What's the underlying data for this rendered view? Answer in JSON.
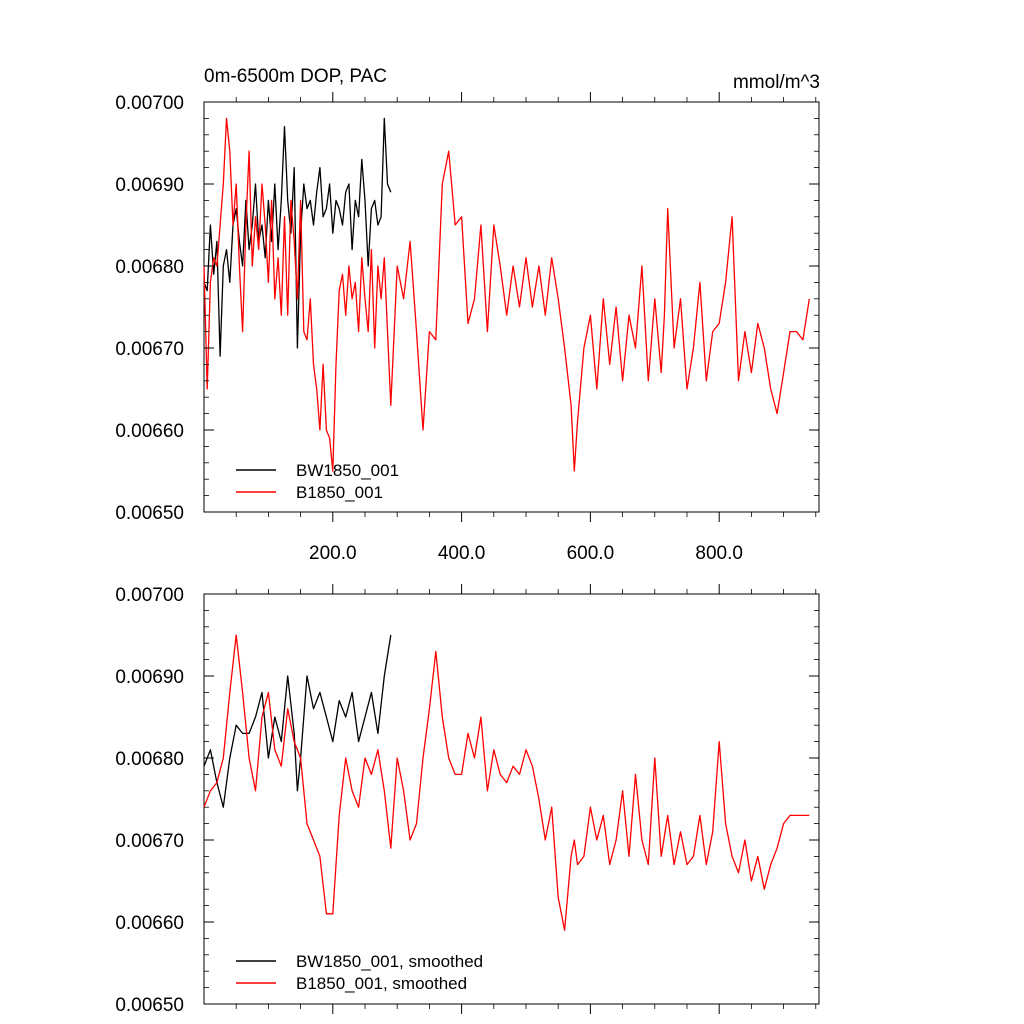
{
  "chart_data": [
    {
      "type": "line",
      "title": "0m-6500m DOP, PAC",
      "units": "mmol/m^3",
      "xlabel": "",
      "ylabel": "",
      "xlim": [
        0,
        955
      ],
      "ylim": [
        0.0065,
        0.007
      ],
      "x_tick_values": [
        200,
        400,
        600,
        800
      ],
      "x_tick_labels": [
        "200.0",
        "400.0",
        "600.0",
        "800.0"
      ],
      "y_tick_values": [
        0.0065,
        0.0066,
        0.0067,
        0.0068,
        0.0069,
        0.007
      ],
      "y_tick_labels": [
        "0.00650",
        "0.00660",
        "0.00670",
        "0.00680",
        "0.00690",
        "0.00700"
      ],
      "legend_position": "bottom-left",
      "series": [
        {
          "name": "BW1850_001",
          "color": "#000000",
          "x": [
            0,
            5,
            10,
            15,
            20,
            25,
            30,
            35,
            40,
            45,
            50,
            55,
            60,
            65,
            70,
            75,
            80,
            85,
            90,
            95,
            100,
            105,
            110,
            115,
            120,
            125,
            130,
            135,
            140,
            145,
            150,
            155,
            160,
            165,
            170,
            175,
            180,
            185,
            190,
            195,
            200,
            205,
            210,
            215,
            220,
            225,
            230,
            235,
            240,
            245,
            250,
            255,
            260,
            265,
            270,
            275,
            280,
            285,
            290
          ],
          "values": [
            0.00678,
            0.00677,
            0.00685,
            0.00679,
            0.00683,
            0.00669,
            0.0068,
            0.00682,
            0.00678,
            0.00685,
            0.00687,
            0.00683,
            0.0068,
            0.00688,
            0.00682,
            0.00685,
            0.0069,
            0.00683,
            0.00685,
            0.00681,
            0.00688,
            0.00683,
            0.0069,
            0.00682,
            0.00688,
            0.00697,
            0.00688,
            0.00684,
            0.00692,
            0.0067,
            0.00684,
            0.0069,
            0.00687,
            0.00688,
            0.00685,
            0.00689,
            0.00692,
            0.00686,
            0.00687,
            0.0069,
            0.00684,
            0.00688,
            0.00687,
            0.00685,
            0.00689,
            0.0069,
            0.00682,
            0.00688,
            0.00686,
            0.00693,
            0.00688,
            0.0068,
            0.00687,
            0.00688,
            0.00685,
            0.00686,
            0.00698,
            0.0069,
            0.00689
          ]
        },
        {
          "name": "B1850_001",
          "color": "#ff0000",
          "x": [
            0,
            5,
            10,
            15,
            20,
            25,
            30,
            35,
            40,
            45,
            50,
            55,
            60,
            65,
            70,
            75,
            80,
            85,
            90,
            95,
            100,
            105,
            110,
            115,
            120,
            125,
            130,
            135,
            140,
            145,
            150,
            155,
            160,
            165,
            170,
            175,
            180,
            185,
            190,
            195,
            200,
            205,
            210,
            215,
            220,
            225,
            230,
            235,
            240,
            245,
            250,
            255,
            260,
            265,
            270,
            275,
            280,
            285,
            290,
            300,
            310,
            320,
            330,
            340,
            350,
            360,
            370,
            380,
            390,
            400,
            410,
            420,
            430,
            440,
            450,
            460,
            470,
            480,
            490,
            500,
            510,
            520,
            530,
            540,
            550,
            560,
            570,
            575,
            580,
            590,
            600,
            610,
            620,
            630,
            640,
            650,
            660,
            670,
            680,
            690,
            700,
            710,
            715,
            720,
            730,
            740,
            750,
            760,
            770,
            780,
            790,
            800,
            810,
            820,
            830,
            840,
            850,
            860,
            870,
            880,
            890,
            900,
            910,
            920,
            930,
            940
          ],
          "values": [
            0.0068,
            0.00665,
            0.00678,
            0.00681,
            0.0068,
            0.00685,
            0.0069,
            0.00698,
            0.00694,
            0.00685,
            0.0069,
            0.0068,
            0.00672,
            0.00685,
            0.00694,
            0.0068,
            0.00686,
            0.00682,
            0.0069,
            0.00685,
            0.00678,
            0.00688,
            0.00676,
            0.00681,
            0.00674,
            0.00686,
            0.00674,
            0.00688,
            0.00683,
            0.00676,
            0.00688,
            0.00672,
            0.00671,
            0.00676,
            0.00668,
            0.00665,
            0.0066,
            0.00668,
            0.0066,
            0.00659,
            0.00655,
            0.00668,
            0.00677,
            0.00679,
            0.00674,
            0.0068,
            0.00676,
            0.00678,
            0.00672,
            0.00681,
            0.00676,
            0.00672,
            0.00682,
            0.0067,
            0.0068,
            0.00676,
            0.00681,
            0.00672,
            0.00663,
            0.0068,
            0.00676,
            0.00683,
            0.00672,
            0.0066,
            0.00672,
            0.00671,
            0.0069,
            0.00694,
            0.00685,
            0.00686,
            0.00673,
            0.00676,
            0.00685,
            0.00672,
            0.00685,
            0.0068,
            0.00674,
            0.0068,
            0.00675,
            0.00681,
            0.00675,
            0.0068,
            0.00674,
            0.00681,
            0.00676,
            0.0067,
            0.00663,
            0.00655,
            0.00661,
            0.0067,
            0.00674,
            0.00665,
            0.00676,
            0.00668,
            0.00675,
            0.00666,
            0.00674,
            0.0067,
            0.0068,
            0.00666,
            0.00676,
            0.00667,
            0.00674,
            0.00687,
            0.0067,
            0.00676,
            0.00665,
            0.0067,
            0.00678,
            0.00666,
            0.00672,
            0.00673,
            0.00678,
            0.00686,
            0.00666,
            0.00672,
            0.00667,
            0.00673,
            0.0067,
            0.00665,
            0.00662,
            0.00667,
            0.00672,
            0.00672,
            0.00671,
            0.00676
          ]
        }
      ]
    },
    {
      "type": "line",
      "title": "",
      "xlabel": "",
      "ylabel": "",
      "xlim": [
        0,
        955
      ],
      "ylim": [
        0.0065,
        0.007
      ],
      "x_tick_values": [
        200,
        400,
        600,
        800
      ],
      "x_tick_labels": [],
      "y_tick_values": [
        0.0065,
        0.0066,
        0.0067,
        0.0068,
        0.0069,
        0.007
      ],
      "y_tick_labels": [
        "0.00650",
        "0.00660",
        "0.00670",
        "0.00680",
        "0.00690",
        "0.00700"
      ],
      "legend_position": "bottom-left",
      "series": [
        {
          "name": "BW1850_001, smoothed",
          "color": "#000000",
          "x": [
            0,
            10,
            20,
            30,
            40,
            50,
            60,
            70,
            80,
            90,
            100,
            110,
            120,
            130,
            140,
            145,
            150,
            160,
            170,
            180,
            190,
            200,
            210,
            220,
            230,
            240,
            250,
            260,
            270,
            280,
            290
          ],
          "values": [
            0.00679,
            0.00681,
            0.00677,
            0.00674,
            0.0068,
            0.00684,
            0.00683,
            0.00683,
            0.00685,
            0.00688,
            0.0068,
            0.00685,
            0.00682,
            0.0069,
            0.00683,
            0.00676,
            0.0068,
            0.0069,
            0.00686,
            0.00688,
            0.00685,
            0.00682,
            0.00687,
            0.00685,
            0.00688,
            0.00682,
            0.00685,
            0.00688,
            0.00683,
            0.0069,
            0.00695
          ]
        },
        {
          "name": "B1850_001, smoothed",
          "color": "#ff0000",
          "x": [
            0,
            10,
            20,
            30,
            40,
            50,
            60,
            70,
            80,
            90,
            100,
            110,
            120,
            130,
            140,
            150,
            160,
            170,
            180,
            190,
            200,
            210,
            220,
            230,
            240,
            250,
            260,
            270,
            280,
            290,
            300,
            310,
            320,
            330,
            340,
            350,
            360,
            370,
            380,
            390,
            400,
            410,
            420,
            430,
            440,
            450,
            460,
            470,
            480,
            490,
            500,
            510,
            520,
            530,
            540,
            550,
            560,
            570,
            575,
            580,
            590,
            600,
            610,
            620,
            630,
            640,
            650,
            660,
            670,
            680,
            690,
            700,
            710,
            720,
            730,
            740,
            750,
            760,
            770,
            780,
            790,
            800,
            810,
            820,
            830,
            840,
            850,
            860,
            870,
            880,
            890,
            900,
            910,
            920,
            930,
            940
          ],
          "values": [
            0.00674,
            0.00676,
            0.00677,
            0.0068,
            0.00688,
            0.00695,
            0.00688,
            0.0068,
            0.00676,
            0.00685,
            0.00688,
            0.00681,
            0.00679,
            0.00686,
            0.00682,
            0.0068,
            0.00672,
            0.0067,
            0.00668,
            0.00661,
            0.00661,
            0.00673,
            0.0068,
            0.00676,
            0.00674,
            0.0068,
            0.00678,
            0.00681,
            0.00676,
            0.00669,
            0.0068,
            0.00676,
            0.0067,
            0.00672,
            0.0068,
            0.00686,
            0.00693,
            0.00685,
            0.0068,
            0.00678,
            0.00678,
            0.00683,
            0.0068,
            0.00685,
            0.00676,
            0.00681,
            0.00678,
            0.00677,
            0.00679,
            0.00678,
            0.00681,
            0.00679,
            0.00675,
            0.0067,
            0.00674,
            0.00663,
            0.00659,
            0.00668,
            0.0067,
            0.00667,
            0.00668,
            0.00674,
            0.0067,
            0.00673,
            0.00667,
            0.0067,
            0.00676,
            0.00668,
            0.00678,
            0.0067,
            0.00667,
            0.0068,
            0.00668,
            0.00673,
            0.00667,
            0.00671,
            0.00667,
            0.00668,
            0.00673,
            0.00667,
            0.00671,
            0.00682,
            0.00672,
            0.00668,
            0.00666,
            0.0067,
            0.00665,
            0.00668,
            0.00664,
            0.00667,
            0.00669,
            0.00672,
            0.00673,
            0.00673,
            0.00673,
            0.00673
          ]
        }
      ]
    }
  ]
}
